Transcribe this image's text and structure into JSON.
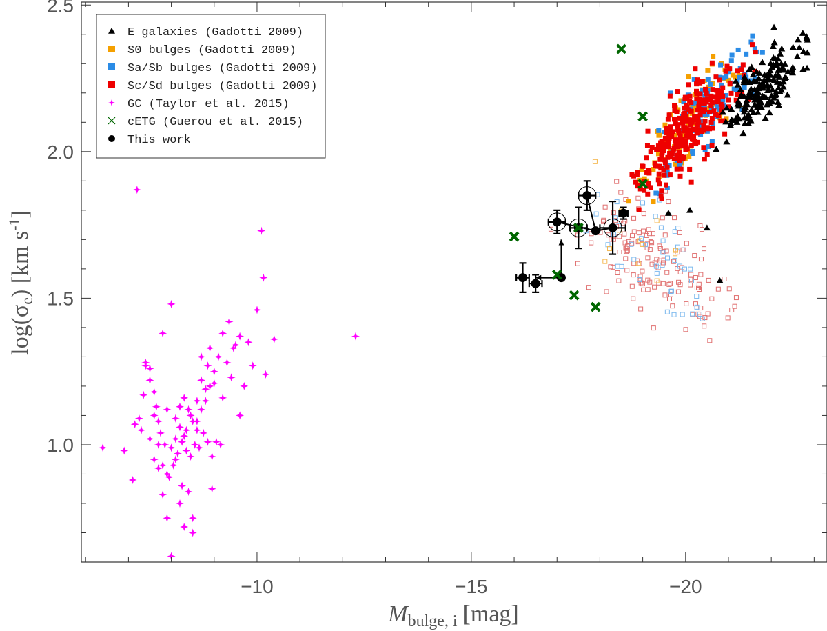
{
  "chart_data": {
    "type": "scatter",
    "title": "",
    "xlabel": "M_bulge, i [mag]",
    "xlabel_main": "M",
    "xlabel_sub": "bulge, i",
    "xlabel_unit": "[mag]",
    "ylabel": "log(σe) [km s-1]",
    "ylabel_main": "log(σ",
    "ylabel_sub": "e",
    "ylabel_mid": ") [km s",
    "ylabel_sup": "-1",
    "ylabel_end": "]",
    "xlim": [
      -5.9,
      -23.3
    ],
    "ylim": [
      0.6,
      2.51
    ],
    "xticks": [
      -10,
      -15,
      -20
    ],
    "xtick_labels": [
      "−10",
      "−15",
      "−20"
    ],
    "yticks": [
      1.0,
      1.5,
      2.0,
      2.5
    ],
    "ytick_labels": [
      "1.0",
      "1.5",
      "2.0",
      "2.5"
    ],
    "legend_position": "top-left",
    "colors": {
      "E": "#000000",
      "S0": "#f5a000",
      "SaSb": "#2b8ce6",
      "ScSd": "#ee0000",
      "GC": "#ff00ff",
      "cETG": "#006600",
      "this": "#000000"
    },
    "legend": [
      {
        "label": "E galaxies (Gadotti 2009)",
        "marker": "triangle",
        "color": "#000000"
      },
      {
        "label": "S0 bulges (Gadotti 2009)",
        "marker": "square",
        "color": "#f5a000"
      },
      {
        "label": "Sa/Sb bulges (Gadotti 2009)",
        "marker": "square",
        "color": "#2b8ce6"
      },
      {
        "label": "Sc/Sd bulges (Gadotti 2009)",
        "marker": "square",
        "color": "#ee0000"
      },
      {
        "label": "GC (Taylor et al. 2015)",
        "marker": "star",
        "color": "#ff00ff"
      },
      {
        "label": "cETG (Guerou et al. 2015)",
        "marker": "x",
        "color": "#006600"
      },
      {
        "label": "This work",
        "marker": "circle",
        "color": "#000000"
      }
    ],
    "series": [
      {
        "name": "GC (Taylor et al. 2015)",
        "marker": "star",
        "color": "#ff00ff",
        "points": [
          [
            -6.4,
            0.99
          ],
          [
            -6.9,
            0.98
          ],
          [
            -7.1,
            0.88
          ],
          [
            -7.3,
            1.05
          ],
          [
            -7.4,
            1.28
          ],
          [
            -7.5,
            1.26
          ],
          [
            -7.6,
            1.1
          ],
          [
            -7.7,
            1.0
          ],
          [
            -7.8,
            0.83
          ],
          [
            -7.9,
            0.75
          ],
          [
            -8.0,
            0.62
          ],
          [
            -8.1,
            0.95
          ],
          [
            -8.2,
            0.8
          ],
          [
            -8.3,
            0.72
          ],
          [
            -8.4,
            0.84
          ],
          [
            -8.5,
            0.7
          ],
          [
            -8.6,
            1.05
          ],
          [
            -8.7,
            1.12
          ],
          [
            -8.8,
            1.15
          ],
          [
            -8.9,
            1.2
          ],
          [
            -9.0,
            1.25
          ],
          [
            -9.1,
            1.3
          ],
          [
            -9.2,
            1.38
          ],
          [
            -9.3,
            1.28
          ],
          [
            -9.4,
            1.23
          ],
          [
            -9.5,
            1.34
          ],
          [
            -9.6,
            1.37
          ],
          [
            -9.7,
            1.2
          ],
          [
            -9.8,
            1.35
          ],
          [
            -9.9,
            1.27
          ],
          [
            -7.2,
            1.87
          ],
          [
            -10.1,
            1.73
          ],
          [
            -10.0,
            1.46
          ],
          [
            -10.15,
            1.57
          ],
          [
            -10.2,
            1.24
          ],
          [
            -10.4,
            1.36
          ],
          [
            -12.3,
            1.37
          ],
          [
            -8.0,
            1.48
          ],
          [
            -7.8,
            1.38
          ],
          [
            -7.5,
            1.02
          ],
          [
            -7.6,
            0.95
          ],
          [
            -7.7,
            1.08
          ],
          [
            -7.9,
            1.12
          ],
          [
            -8.1,
            1.09
          ],
          [
            -8.2,
            1.06
          ],
          [
            -8.3,
            1.03
          ],
          [
            -8.35,
            0.98
          ],
          [
            -8.45,
            0.96
          ],
          [
            -8.55,
            1.0
          ],
          [
            -8.65,
            0.99
          ],
          [
            -8.75,
            1.04
          ],
          [
            -8.85,
            1.01
          ],
          [
            -8.95,
            0.96
          ],
          [
            -9.05,
            1.01
          ],
          [
            -9.15,
            1.0
          ],
          [
            -8.5,
            1.08
          ],
          [
            -8.4,
            1.12
          ],
          [
            -8.6,
            1.15
          ],
          [
            -8.3,
            1.16
          ],
          [
            -8.2,
            1.13
          ],
          [
            -8.1,
            1.02
          ],
          [
            -8.0,
            0.99
          ],
          [
            -7.9,
            0.9
          ],
          [
            -7.8,
            0.93
          ],
          [
            -7.7,
            0.92
          ],
          [
            -7.6,
            1.18
          ],
          [
            -7.5,
            1.22
          ],
          [
            -7.4,
            1.27
          ],
          [
            -7.35,
            1.17
          ],
          [
            -7.25,
            1.09
          ],
          [
            -7.15,
            1.07
          ],
          [
            -8.9,
            1.33
          ],
          [
            -9.35,
            1.42
          ],
          [
            -9.45,
            1.33
          ],
          [
            -9.2,
            1.16
          ],
          [
            -9.0,
            1.21
          ],
          [
            -8.8,
            1.19
          ],
          [
            -8.7,
            1.22
          ],
          [
            -8.6,
            1.08
          ],
          [
            -8.45,
            1.1
          ],
          [
            -8.35,
            1.05
          ],
          [
            -8.25,
            1.01
          ],
          [
            -8.15,
            0.97
          ],
          [
            -8.05,
            0.93
          ],
          [
            -7.95,
            0.89
          ],
          [
            -7.85,
            1.0
          ],
          [
            -7.75,
            1.04
          ],
          [
            -7.65,
            1.13
          ],
          [
            -8.25,
            0.86
          ],
          [
            -8.5,
            0.75
          ],
          [
            -8.95,
            0.85
          ],
          [
            -9.6,
            1.1
          ],
          [
            -8.7,
            1.3
          ],
          [
            -8.85,
            1.27
          ]
        ]
      },
      {
        "name": "This work",
        "marker": "circle",
        "color": "#000000",
        "points": [
          {
            "x": -16.2,
            "y": 1.57,
            "xerr": 0.15,
            "yerr": 0.05,
            "ring": false
          },
          {
            "x": -16.5,
            "y": 1.55,
            "xerr": 0.15,
            "yerr": 0.03,
            "ring": false
          },
          {
            "x": -17.0,
            "y": 1.76,
            "xerr": 0.2,
            "yerr": 0.04,
            "ring": true
          },
          {
            "x": -17.1,
            "y": 1.57,
            "xerr": 0.0,
            "yerr": 0.0,
            "ring": false
          },
          {
            "x": -17.5,
            "y": 1.74,
            "xerr": 0.2,
            "yerr": 0.07,
            "ring": true
          },
          {
            "x": -17.7,
            "y": 1.85,
            "xerr": 0.2,
            "yerr": 0.05,
            "ring": true
          },
          {
            "x": -17.9,
            "y": 1.73,
            "xerr": 0.0,
            "yerr": 0.0,
            "ring": false
          },
          {
            "x": -18.3,
            "y": 1.74,
            "xerr": 0.3,
            "yerr": 0.09,
            "ring": true
          },
          {
            "x": -18.55,
            "y": 1.79,
            "xerr": 0.1,
            "yerr": 0.02,
            "ring": false
          }
        ]
      },
      {
        "name": "cETG (Guerou et al. 2015)",
        "marker": "x",
        "color": "#006600",
        "points": [
          [
            -16.0,
            1.71
          ],
          [
            -17.0,
            1.58
          ],
          [
            -17.4,
            1.51
          ],
          [
            -17.5,
            1.74
          ],
          [
            -17.9,
            1.47
          ],
          [
            -18.5,
            2.35
          ],
          [
            -19.0,
            2.12
          ],
          [
            -19.0,
            1.89
          ]
        ]
      }
    ],
    "arrows": [
      {
        "from": [
          -17.1,
          1.57
        ],
        "to": [
          -16.5,
          1.57
        ]
      },
      {
        "from": [
          -17.1,
          1.57
        ],
        "to": [
          -17.1,
          1.7
        ]
      }
    ]
  }
}
